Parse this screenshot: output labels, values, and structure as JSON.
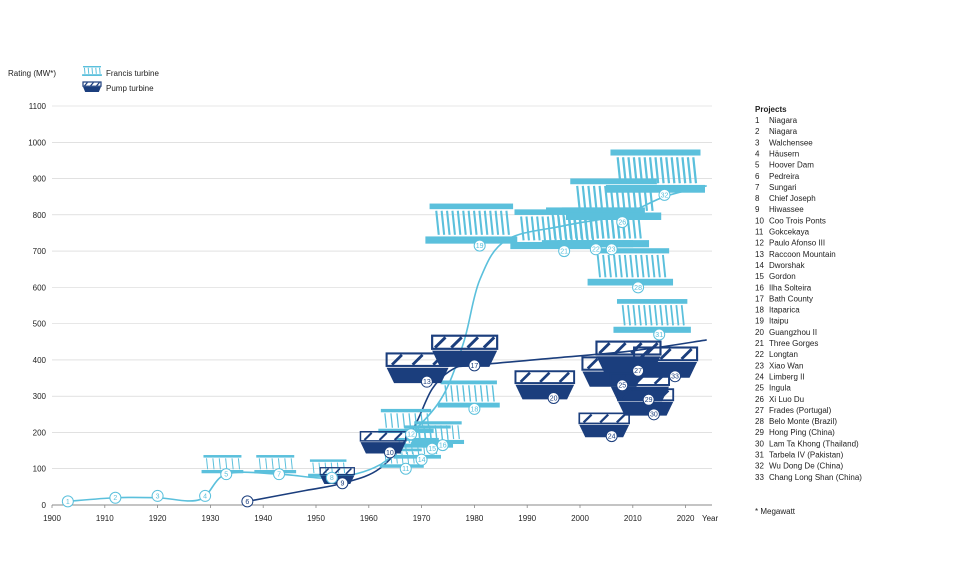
{
  "chart_data": {
    "type": "scatter",
    "ylabel": "Rating (MW*)",
    "xlabel": "Year",
    "xlim": [
      1900,
      2025
    ],
    "ylim": [
      0,
      1100
    ],
    "x_ticks": [
      "1900",
      "1910",
      "1920",
      "1930",
      "1940",
      "1950",
      "1960",
      "1970",
      "1980",
      "1990",
      "2000",
      "2010",
      "2020"
    ],
    "y_ticks": [
      "0",
      "100",
      "200",
      "300",
      "400",
      "500",
      "600",
      "700",
      "800",
      "900",
      "1000",
      "1100"
    ],
    "legend": [
      {
        "name": "Francis turbine",
        "color": "#5bc0dc"
      },
      {
        "name": "Pump turbine",
        "color": "#1b3e7d"
      }
    ],
    "footnote": "* Megawatt",
    "projects_title": "Projects",
    "projects": [
      {
        "id": "1",
        "name": "Niagara"
      },
      {
        "id": "2",
        "name": "Niagara"
      },
      {
        "id": "3",
        "name": "Walchensee"
      },
      {
        "id": "4",
        "name": "Häusern"
      },
      {
        "id": "5",
        "name": "Hoover Dam"
      },
      {
        "id": "6",
        "name": "Pedreira"
      },
      {
        "id": "7",
        "name": "Sungari"
      },
      {
        "id": "8",
        "name": "Chief Joseph"
      },
      {
        "id": "9",
        "name": "Hiwassee"
      },
      {
        "id": "10",
        "name": "Coo Trois Ponts"
      },
      {
        "id": "11",
        "name": "Gokcekaya"
      },
      {
        "id": "12",
        "name": "Paulo Afonso III"
      },
      {
        "id": "13",
        "name": "Raccoon Mountain"
      },
      {
        "id": "14",
        "name": "Dworshak"
      },
      {
        "id": "15",
        "name": "Gordon"
      },
      {
        "id": "16",
        "name": "Ilha Solteira"
      },
      {
        "id": "17",
        "name": "Bath County"
      },
      {
        "id": "18",
        "name": "Itaparica"
      },
      {
        "id": "19",
        "name": "Itaipu"
      },
      {
        "id": "20",
        "name": "Guangzhou II"
      },
      {
        "id": "21",
        "name": "Three Gorges"
      },
      {
        "id": "22",
        "name": "Longtan"
      },
      {
        "id": "23",
        "name": "Xiao Wan"
      },
      {
        "id": "24",
        "name": "Limberg II"
      },
      {
        "id": "25",
        "name": "Ingula"
      },
      {
        "id": "26",
        "name": "Xi Luo Du"
      },
      {
        "id": "27",
        "name": "Frades (Portugal)"
      },
      {
        "id": "28",
        "name": "Belo Monte (Brazil)"
      },
      {
        "id": "29",
        "name": "Hong Ping (China)"
      },
      {
        "id": "30",
        "name": "Lam Ta Khong (Thailand)"
      },
      {
        "id": "31",
        "name": "Tarbela IV (Pakistan)"
      },
      {
        "id": "32",
        "name": "Wu Dong De (China)"
      },
      {
        "id": "33",
        "name": "Chang Long Shan (China)"
      }
    ],
    "francis_points": [
      {
        "id": "1",
        "x": 1903,
        "y": 10
      },
      {
        "id": "2",
        "x": 1912,
        "y": 20
      },
      {
        "id": "3",
        "x": 1920,
        "y": 25
      },
      {
        "id": "4",
        "x": 1929,
        "y": 25
      },
      {
        "id": "5",
        "x": 1933,
        "y": 85
      },
      {
        "id": "7",
        "x": 1943,
        "y": 85
      },
      {
        "id": "8",
        "x": 1953,
        "y": 75
      },
      {
        "id": "11",
        "x": 1967,
        "y": 100
      },
      {
        "id": "12",
        "x": 1968,
        "y": 195
      },
      {
        "id": "14",
        "x": 1970,
        "y": 125
      },
      {
        "id": "15",
        "x": 1972,
        "y": 155
      },
      {
        "id": "16",
        "x": 1974,
        "y": 165
      },
      {
        "id": "18",
        "x": 1980,
        "y": 265
      },
      {
        "id": "19",
        "x": 1981,
        "y": 715
      },
      {
        "id": "21",
        "x": 1997,
        "y": 700
      },
      {
        "id": "22",
        "x": 2003,
        "y": 705
      },
      {
        "id": "23",
        "x": 2006,
        "y": 705
      },
      {
        "id": "26",
        "x": 2008,
        "y": 780
      },
      {
        "id": "28",
        "x": 2011,
        "y": 600
      },
      {
        "id": "31",
        "x": 2015,
        "y": 470
      },
      {
        "id": "32",
        "x": 2016,
        "y": 855
      }
    ],
    "pump_points": [
      {
        "id": "6",
        "x": 1937,
        "y": 10
      },
      {
        "id": "9",
        "x": 1955,
        "y": 60
      },
      {
        "id": "10",
        "x": 1964,
        "y": 145
      },
      {
        "id": "13",
        "x": 1971,
        "y": 340
      },
      {
        "id": "17",
        "x": 1980,
        "y": 385
      },
      {
        "id": "20",
        "x": 1995,
        "y": 295
      },
      {
        "id": "24",
        "x": 2006,
        "y": 190
      },
      {
        "id": "25",
        "x": 2008,
        "y": 330
      },
      {
        "id": "27",
        "x": 2011,
        "y": 370
      },
      {
        "id": "29",
        "x": 2013,
        "y": 290
      },
      {
        "id": "30",
        "x": 2014,
        "y": 250
      },
      {
        "id": "33",
        "x": 2018,
        "y": 355
      }
    ],
    "francis_trend": [
      [
        1903,
        10
      ],
      [
        1912,
        20
      ],
      [
        1920,
        20
      ],
      [
        1928,
        15
      ],
      [
        1933,
        85
      ],
      [
        1943,
        85
      ],
      [
        1953,
        75
      ],
      [
        1962,
        110
      ],
      [
        1968,
        195
      ],
      [
        1974,
        300
      ],
      [
        1978,
        450
      ],
      [
        1981,
        620
      ],
      [
        1986,
        730
      ],
      [
        1997,
        770
      ],
      [
        2008,
        800
      ],
      [
        2016,
        850
      ],
      [
        2024,
        880
      ]
    ],
    "pump_trend": [
      [
        1937,
        10
      ],
      [
        1948,
        40
      ],
      [
        1955,
        60
      ],
      [
        1962,
        100
      ],
      [
        1968,
        200
      ],
      [
        1972,
        320
      ],
      [
        1976,
        375
      ],
      [
        1980,
        385
      ],
      [
        1995,
        405
      ],
      [
        2010,
        425
      ],
      [
        2024,
        455
      ]
    ]
  }
}
